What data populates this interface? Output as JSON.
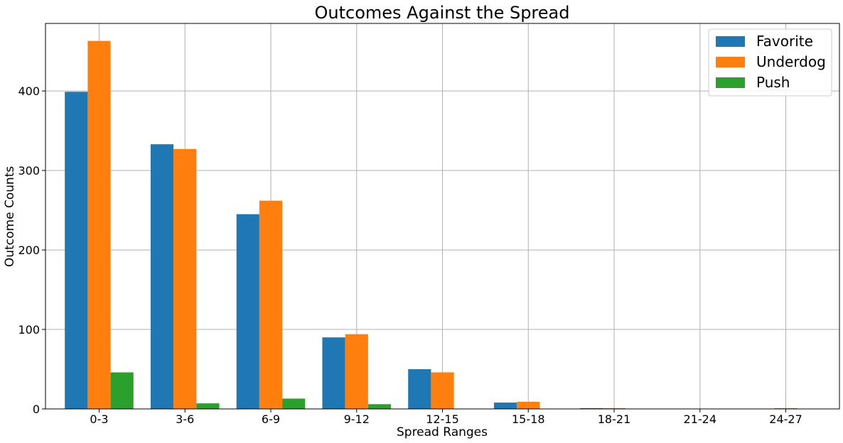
{
  "chart_data": {
    "type": "bar",
    "title": "Outcomes Against the Spread",
    "xlabel": "Spread Ranges",
    "ylabel": "Outcome Counts",
    "categories": [
      "0-3",
      "3-6",
      "6-9",
      "9-12",
      "12-15",
      "15-18",
      "18-21",
      "21-24",
      "24-27"
    ],
    "series": [
      {
        "name": "Favorite",
        "color": "#1f77b4",
        "values": [
          399,
          333,
          245,
          90,
          50,
          8,
          1,
          0,
          0
        ]
      },
      {
        "name": "Underdog",
        "color": "#ff7f0e",
        "values": [
          463,
          327,
          262,
          94,
          46,
          9,
          1,
          0,
          1
        ]
      },
      {
        "name": "Push",
        "color": "#2ca02c",
        "values": [
          46,
          7,
          13,
          6,
          0,
          0,
          0,
          0,
          0
        ]
      }
    ],
    "ylim": [
      0,
      485
    ],
    "yticks": [
      0,
      100,
      200,
      300,
      400
    ],
    "grid": true,
    "legend_position": "top-right"
  }
}
